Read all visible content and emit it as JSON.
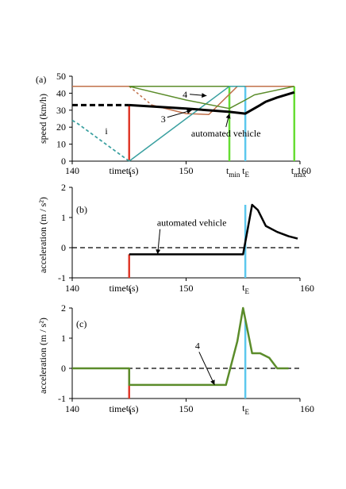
{
  "chart_data": [
    {
      "type": "line",
      "panel_label": "(a)",
      "xlabel": "time (s)",
      "ylabel": "speed (km/h)",
      "xlim": [
        140,
        160
      ],
      "ylim": [
        0,
        50
      ],
      "xticks": [
        "140",
        "150",
        "160"
      ],
      "yticks": [
        "0",
        "10",
        "20",
        "30",
        "40",
        "50"
      ],
      "markers": [
        {
          "label": "t",
          "sub": "1",
          "x": 145,
          "color": "#e03a2a"
        },
        {
          "label": "t",
          "sub": "min",
          "x": 153.8,
          "color": "#66dd33"
        },
        {
          "label": "t",
          "sub": "E",
          "x": 155.2,
          "color": "#5cc8ee"
        },
        {
          "label": "t",
          "sub": "max",
          "x": 159.5,
          "color": "#66dd33"
        }
      ],
      "series": [
        {
          "color": "#3a4fb0",
          "width": 1.5,
          "dash": "",
          "points": [
            [
              140,
              44
            ],
            [
              159.5,
              44
            ]
          ]
        },
        {
          "color": "#5b8c2a",
          "width": 1.5,
          "dash": "",
          "points": [
            [
              140,
              44
            ],
            [
              159.5,
              44
            ]
          ]
        },
        {
          "color": "#c0704a",
          "width": 1.5,
          "dash": "",
          "points": [
            [
              140,
              44
            ],
            [
              145,
              44
            ]
          ]
        },
        {
          "color": "#c0704a",
          "width": 1.5,
          "dash": "3,3",
          "points": [
            [
              145,
              44
            ],
            [
              147,
              33
            ]
          ]
        },
        {
          "color": "#c0704a",
          "width": 1.5,
          "dash": "",
          "points": [
            [
              147,
              33
            ],
            [
              150,
              28
            ],
            [
              152,
              27.5
            ],
            [
              154.5,
              44
            ],
            [
              159.5,
              44
            ]
          ]
        },
        {
          "color": "#3aa0a0",
          "width": 1.5,
          "dash": "",
          "points": [
            [
              145,
              0
            ],
            [
              153.8,
              44
            ],
            [
              155.2,
              44
            ]
          ]
        },
        {
          "color": "#3aa0a0",
          "width": 1.8,
          "dash": "4,3",
          "points": [
            [
              140,
              24
            ],
            [
              140.5,
              22
            ],
            [
              145,
              0
            ]
          ]
        },
        {
          "color": "#5b8c2a",
          "width": 1.5,
          "dash": "",
          "points": [
            [
              145,
              44
            ],
            [
              150,
              36
            ],
            [
              153.8,
              31
            ],
            [
              155.2,
              36
            ],
            [
              156,
              39
            ],
            [
              159.5,
              44
            ]
          ]
        },
        {
          "color": "#000000",
          "width": 3,
          "dash": "7,4",
          "points": [
            [
              140,
              33
            ],
            [
              145,
              33
            ]
          ]
        },
        {
          "color": "#000000",
          "width": 3,
          "dash": "",
          "points": [
            [
              145,
              33
            ],
            [
              150,
              31
            ],
            [
              153.8,
              29
            ],
            [
              155.2,
              28
            ],
            [
              156.5,
              33
            ],
            [
              157,
              35
            ],
            [
              158,
              37.5
            ],
            [
              159.5,
              40.5
            ]
          ]
        }
      ],
      "annotations": [
        {
          "text": "4",
          "x": 149.9,
          "y": 37.5,
          "to": [
            151.8,
            38.5
          ]
        },
        {
          "text": "3",
          "x": 148,
          "y": 23,
          "to": [
            150.5,
            30
          ]
        },
        {
          "text": "i",
          "x": 143,
          "y": 16,
          "to": null
        },
        {
          "text": "automated vehicle",
          "x": 153.5,
          "y": 14.5,
          "to": [
            153.8,
            28
          ]
        }
      ]
    },
    {
      "type": "line",
      "panel_label": "(b)",
      "xlabel": "time (s)",
      "ylabel": "acceleration  (m / s²)",
      "xlim": [
        140,
        160
      ],
      "ylim": [
        -1,
        2
      ],
      "xticks": [
        "140",
        "150",
        "160"
      ],
      "yticks": [
        "-1",
        "0",
        "1",
        "2"
      ],
      "markers": [
        {
          "label": "t",
          "sub": "1",
          "x": 145,
          "color": "#e03a2a"
        },
        {
          "label": "t",
          "sub": "E",
          "x": 155.2,
          "color": "#5cc8ee"
        }
      ],
      "series": [
        {
          "color": "#000000",
          "width": 1.2,
          "dash": "6,4",
          "points": [
            [
              140,
              0
            ],
            [
              160,
              0
            ]
          ]
        },
        {
          "color": "#000000",
          "width": 2.5,
          "dash": "",
          "points": [
            [
              145,
              -0.22
            ],
            [
              155,
              -0.22
            ],
            [
              155.8,
              1.42
            ],
            [
              156.3,
              1.25
            ],
            [
              157,
              0.72
            ],
            [
              158,
              0.52
            ],
            [
              159,
              0.38
            ],
            [
              159.8,
              0.3
            ]
          ]
        }
      ],
      "annotations": [
        {
          "text": "automated vehicle",
          "x": 150.5,
          "y": 0.72,
          "to": [
            147.5,
            -0.22
          ]
        }
      ]
    },
    {
      "type": "line",
      "panel_label": "(c)",
      "xlabel": "time (s)",
      "ylabel": "acceleration  (m / s²)",
      "xlim": [
        140,
        160
      ],
      "ylim": [
        -1,
        2
      ],
      "xticks": [
        "140",
        "150",
        "160"
      ],
      "yticks": [
        "-1",
        "0",
        "1",
        "2"
      ],
      "markers": [
        {
          "label": "t",
          "sub": "1",
          "x": 145,
          "color": "#e03a2a"
        },
        {
          "label": "t",
          "sub": "E",
          "x": 155.2,
          "color": "#5cc8ee"
        }
      ],
      "series": [
        {
          "color": "#000000",
          "width": 1.2,
          "dash": "6,4",
          "points": [
            [
              140,
              0
            ],
            [
              160,
              0
            ]
          ]
        },
        {
          "color": "#5b8c2a",
          "width": 2.5,
          "dash": "",
          "points": [
            [
              140,
              0
            ],
            [
              145,
              0
            ],
            [
              145,
              -0.55
            ],
            [
              153.5,
              -0.55
            ],
            [
              154.5,
              0.9
            ],
            [
              155,
              2
            ],
            [
              155.8,
              0.5
            ],
            [
              156.5,
              0.5
            ],
            [
              157.3,
              0.35
            ],
            [
              158,
              0
            ],
            [
              159,
              0
            ]
          ]
        }
      ],
      "annotations": [
        {
          "text": "4",
          "x": 151,
          "y": 0.65,
          "to": [
            152.5,
            -0.55
          ]
        }
      ]
    }
  ]
}
